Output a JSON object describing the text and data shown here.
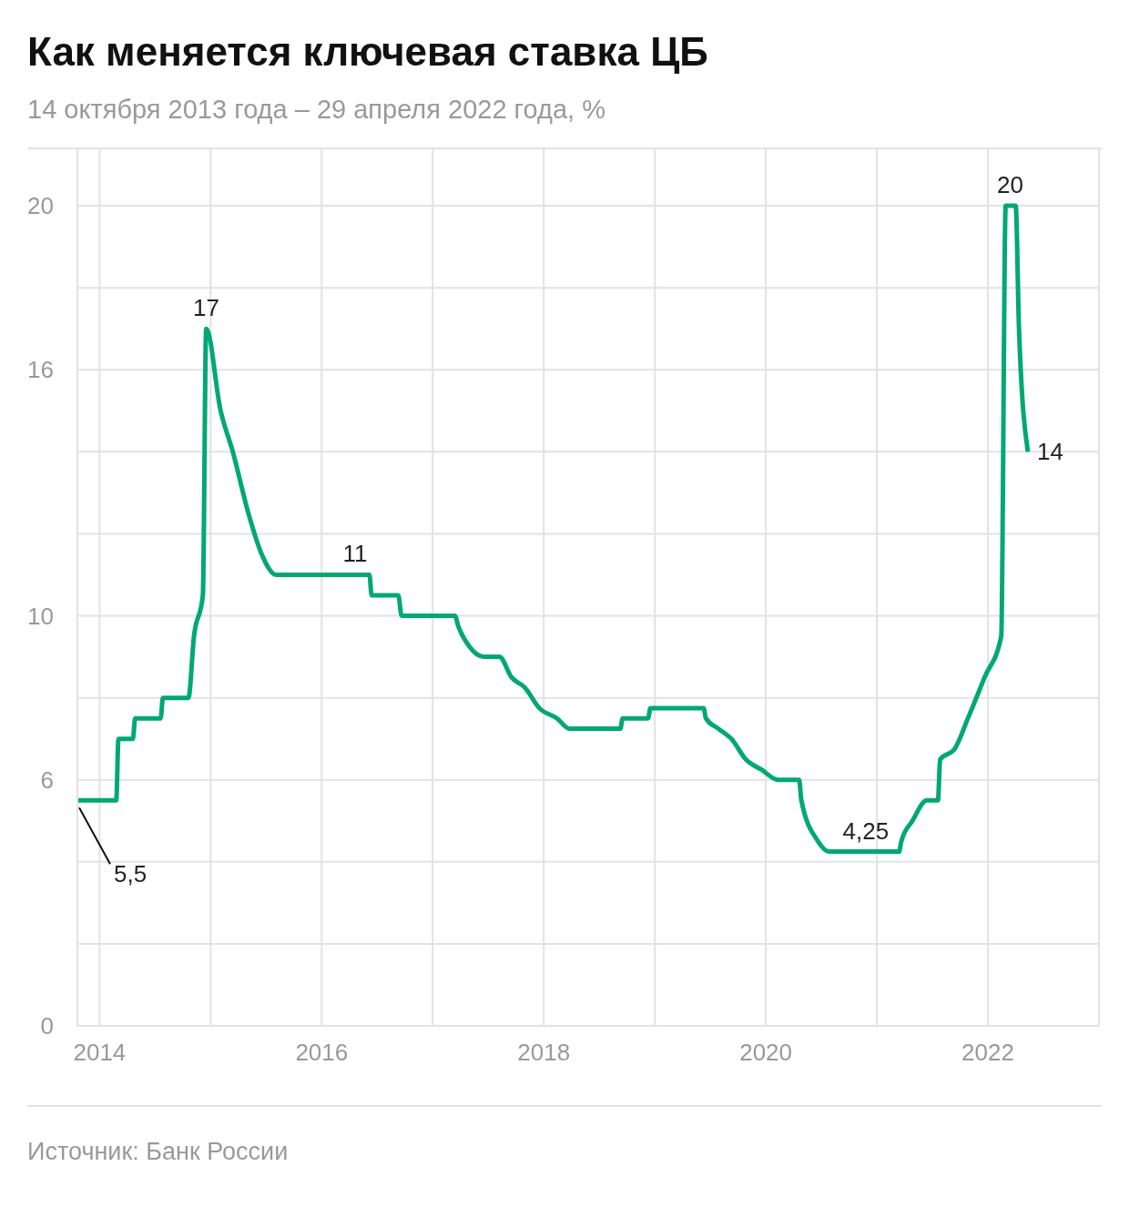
{
  "chart_data": {
    "type": "line",
    "title": "Как меняется ключевая ставка ЦБ",
    "subtitle": "14 октября 2013 года – 29 апреля 2022 года, %",
    "x": [
      2013.8,
      2014.15,
      2014.17,
      2014.3,
      2014.32,
      2014.55,
      2014.57,
      2014.8,
      2014.85,
      2014.93,
      2014.96,
      2015.09,
      2015.2,
      2015.34,
      2015.46,
      2015.59,
      2016.43,
      2016.45,
      2016.69,
      2016.72,
      2017.2,
      2017.23,
      2017.33,
      2017.46,
      2017.6,
      2017.71,
      2017.83,
      2017.96,
      2018.12,
      2018.23,
      2018.69,
      2018.71,
      2018.94,
      2018.96,
      2019.44,
      2019.46,
      2019.57,
      2019.69,
      2019.82,
      2019.96,
      2020.11,
      2020.3,
      2020.32,
      2020.47,
      2020.57,
      2021.2,
      2021.22,
      2021.32,
      2021.45,
      2021.55,
      2021.57,
      2021.7,
      2021.82,
      2021.97,
      2022.12,
      2022.16,
      2022.25,
      2022.28,
      2022.36
    ],
    "series": [
      {
        "color": "#00a874",
        "values": [
          5.5,
          5.5,
          7,
          7,
          7.5,
          7.5,
          8,
          8,
          9.5,
          10.5,
          17,
          15,
          14,
          12.5,
          11.5,
          11,
          11,
          10.5,
          10.5,
          10,
          10,
          9.75,
          9.25,
          9,
          9,
          8.5,
          8.25,
          7.75,
          7.5,
          7.25,
          7.25,
          7.5,
          7.5,
          7.75,
          7.75,
          7.5,
          7.25,
          7,
          6.5,
          6.25,
          6,
          6,
          5.5,
          4.5,
          4.25,
          4.25,
          4.5,
          5,
          5.5,
          5.5,
          6.5,
          6.75,
          7.5,
          8.5,
          9.5,
          20,
          20,
          17,
          14
        ]
      }
    ],
    "xlim": [
      2013.8,
      2023
    ],
    "xticks": [
      2014,
      {
        "value": 2015,
        "label": null
      },
      2016,
      {
        "value": 2017,
        "label": null
      },
      2018,
      {
        "value": 2019,
        "label": null
      },
      2020,
      {
        "value": 2021,
        "label": null
      },
      2022,
      {
        "value": 2023,
        "label": null
      }
    ],
    "ylim": [
      0,
      21.4
    ],
    "yticks": [
      0,
      {
        "value": 2,
        "label": null
      },
      {
        "value": 4,
        "label": null
      },
      6,
      {
        "value": 8,
        "label": null
      },
      10,
      {
        "value": 12,
        "label": null
      },
      {
        "value": 14,
        "label": null
      },
      16,
      {
        "value": 18,
        "label": null
      },
      20
    ],
    "grid": true,
    "legend": false,
    "marker": "none",
    "line_style": "solid",
    "annotations": [
      {
        "text": "5,5",
        "x": 2013.8,
        "y": 5.5
      },
      {
        "text": "17",
        "x": 2014.96,
        "y": 17
      },
      {
        "text": "11",
        "x": 2016.3,
        "y": 11
      },
      {
        "text": "4,25",
        "x": 2020.9,
        "y": 4.25
      },
      {
        "text": "20",
        "x": 2022.2,
        "y": 20
      },
      {
        "text": "14",
        "x": 2022.36,
        "y": 14
      },
      "Источник: Банк России"
    ]
  }
}
